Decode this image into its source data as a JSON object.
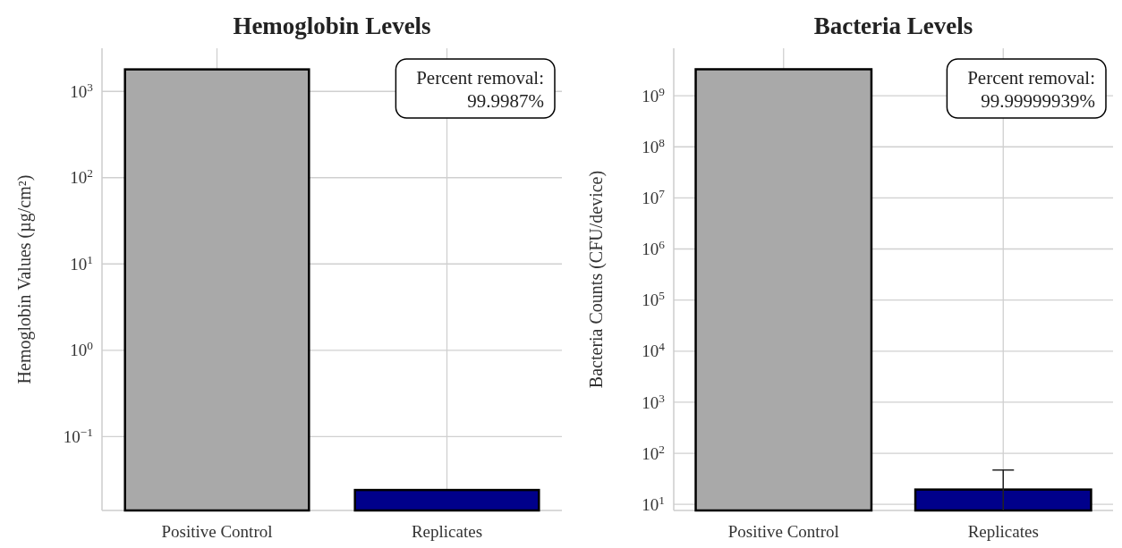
{
  "chart_data": [
    {
      "type": "bar",
      "title": "Hemoglobin Levels",
      "ylabel": "Hemoglobin Values (µg/cm²)",
      "categories": [
        "Positive Control",
        "Replicates"
      ],
      "values": [
        1800,
        0.024
      ],
      "colors": [
        "#a9a9a9",
        "#00008b"
      ],
      "log": true,
      "ylim": [
        0.0139,
        3162
      ],
      "yticks": [
        {
          "value": 0.1,
          "label": "10$^{−1}$"
        },
        {
          "value": 1,
          "label": "10$^{0}$"
        },
        {
          "value": 10,
          "label": "10$^{1}$"
        },
        {
          "value": 100,
          "label": "10$^{2}$"
        },
        {
          "value": 1000,
          "label": "10$^{3}$"
        }
      ],
      "grid": true,
      "annotations": [
        "Percent removal:\n99.9987%"
      ]
    },
    {
      "type": "bar",
      "title": "Bacteria Levels",
      "ylabel": "Bacteria Counts (CFU/device)",
      "categories": [
        "Positive Control",
        "Replicates"
      ],
      "values": [
        3300000000,
        19.5
      ],
      "errors": [
        null,
        [
          7.6,
          47
        ]
      ],
      "colors": [
        "#a9a9a9",
        "#00008b"
      ],
      "log": true,
      "ylim": [
        7.6,
        8500000000
      ],
      "yticks": [
        {
          "value": 10,
          "label": "10$^{1}$"
        },
        {
          "value": 100,
          "label": "10$^{2}$"
        },
        {
          "value": 1000,
          "label": "10$^{3}$"
        },
        {
          "value": 10000,
          "label": "10$^{4}$"
        },
        {
          "value": 100000,
          "label": "10$^{5}$"
        },
        {
          "value": 1000000,
          "label": "10$^{6}$"
        },
        {
          "value": 10000000,
          "label": "10$^{7}$"
        },
        {
          "value": 100000000,
          "label": "10$^{8}$"
        },
        {
          "value": 1000000000,
          "label": "10$^{9}$"
        }
      ],
      "grid": true,
      "annotations": [
        "Percent removal:\n99.99999939%"
      ]
    }
  ]
}
